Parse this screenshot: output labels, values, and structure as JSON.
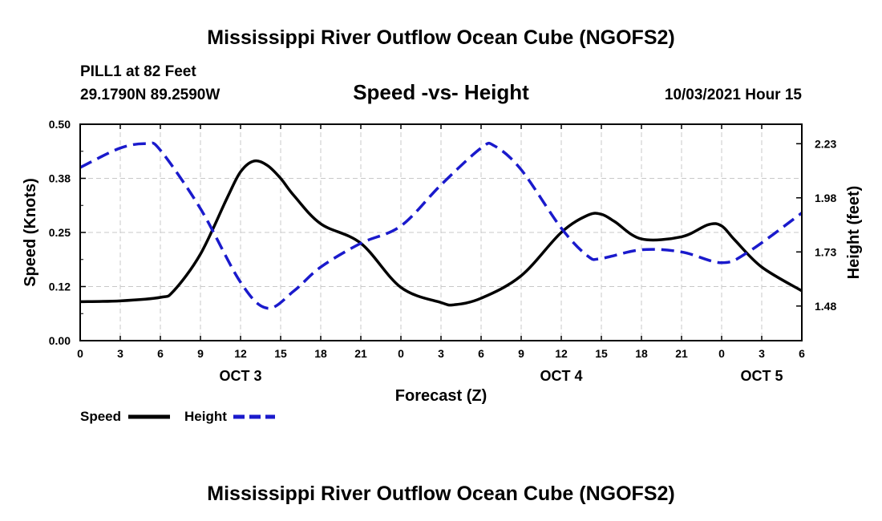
{
  "page": {
    "top_title": "Mississippi River Outflow Ocean Cube (NGOFS2)",
    "bottom_title": "Mississippi River Outflow Ocean Cube (NGOFS2)",
    "station_line": "PILL1 at 82 Feet",
    "coords_line": "29.1790N  89.2590W",
    "chart_title": "Speed -vs- Height",
    "datetime": "10/03/2021 Hour 15"
  },
  "chart_data": {
    "type": "line",
    "title": "Speed -vs- Height",
    "xlabel": "Forecast (Z)",
    "ylabel": "Speed (Knots)",
    "y2label": "Height (feet)",
    "x_hours_range": [
      0,
      54
    ],
    "x_ticks": [
      {
        "hour": 0,
        "label": "0"
      },
      {
        "hour": 3,
        "label": "3"
      },
      {
        "hour": 6,
        "label": "6"
      },
      {
        "hour": 9,
        "label": "9"
      },
      {
        "hour": 12,
        "label": "12"
      },
      {
        "hour": 15,
        "label": "15"
      },
      {
        "hour": 18,
        "label": "18"
      },
      {
        "hour": 21,
        "label": "21"
      },
      {
        "hour": 24,
        "label": "0"
      },
      {
        "hour": 27,
        "label": "3"
      },
      {
        "hour": 30,
        "label": "6"
      },
      {
        "hour": 33,
        "label": "9"
      },
      {
        "hour": 36,
        "label": "12"
      },
      {
        "hour": 39,
        "label": "15"
      },
      {
        "hour": 42,
        "label": "18"
      },
      {
        "hour": 45,
        "label": "21"
      },
      {
        "hour": 48,
        "label": "0"
      },
      {
        "hour": 51,
        "label": "3"
      },
      {
        "hour": 54,
        "label": "6"
      }
    ],
    "date_labels": [
      {
        "hour": 12,
        "label": "OCT 3"
      },
      {
        "hour": 36,
        "label": "OCT 4"
      },
      {
        "hour": 51,
        "label": "OCT 5"
      }
    ],
    "y_left": {
      "range": [
        0,
        0.5
      ],
      "ticks": [
        0,
        0.125,
        0.25,
        0.375,
        0.5
      ],
      "tick_labels": [
        "0.00",
        "0.12",
        "0.25",
        "0.38",
        "0.50"
      ]
    },
    "y_right": {
      "range": [
        1.32,
        2.32
      ],
      "ticks": [
        1.48,
        1.73,
        1.98,
        2.23
      ],
      "tick_labels": [
        "1.48",
        "1.73",
        "1.98",
        "2.23"
      ]
    },
    "grid": true,
    "legend": {
      "position": "bottom-left",
      "entries": [
        "Speed",
        "Height"
      ]
    },
    "series": [
      {
        "name": "Speed",
        "axis": "left",
        "color": "#000000",
        "style": "solid",
        "x": [
          0,
          3,
          6,
          7,
          9,
          11,
          12,
          13,
          14,
          15,
          16,
          18,
          21,
          24,
          27,
          28,
          30,
          33,
          36,
          38,
          39,
          40,
          42,
          45,
          47,
          48,
          49,
          51,
          54
        ],
        "values": [
          0.09,
          0.092,
          0.1,
          0.115,
          0.2,
          0.33,
          0.39,
          0.415,
          0.405,
          0.375,
          0.335,
          0.27,
          0.225,
          0.123,
          0.088,
          0.083,
          0.098,
          0.15,
          0.25,
          0.29,
          0.292,
          0.275,
          0.235,
          0.24,
          0.268,
          0.265,
          0.232,
          0.17,
          0.115
        ]
      },
      {
        "name": "Height",
        "axis": "right",
        "color": "#1a1acc",
        "style": "dashed",
        "x": [
          0,
          3,
          5,
          6,
          9,
          12,
          14,
          16,
          18,
          21,
          24,
          27,
          30,
          31,
          33,
          36,
          38,
          39,
          42,
          45,
          48,
          50,
          54
        ],
        "values": [
          2.12,
          2.21,
          2.23,
          2.2,
          1.93,
          1.59,
          1.47,
          1.55,
          1.66,
          1.77,
          1.85,
          2.04,
          2.21,
          2.22,
          2.11,
          1.84,
          1.71,
          1.7,
          1.74,
          1.73,
          1.68,
          1.73,
          1.91
        ]
      }
    ]
  }
}
